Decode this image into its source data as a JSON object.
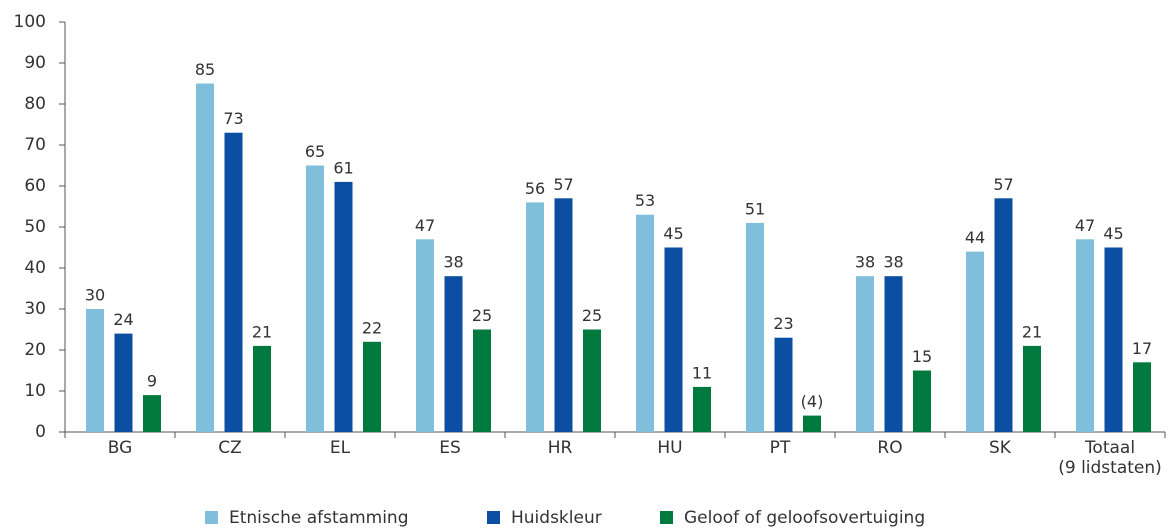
{
  "chart_data": {
    "type": "bar",
    "categories": [
      "BG",
      "CZ",
      "EL",
      "ES",
      "HR",
      "HU",
      "PT",
      "RO",
      "SK",
      "Totaal\n(9 lidstaten)"
    ],
    "series": [
      {
        "name": "Etnische afstamming",
        "color": "#7fbfdb",
        "values": [
          30,
          85,
          65,
          47,
          56,
          53,
          51,
          38,
          44,
          47
        ]
      },
      {
        "name": "Huidskleur",
        "color": "#0b4ea2",
        "values": [
          24,
          73,
          61,
          38,
          57,
          45,
          23,
          38,
          57,
          45
        ]
      },
      {
        "name": "Geloof of geloofsovertuiging",
        "color": "#00793f",
        "values": [
          9,
          21,
          22,
          25,
          25,
          11,
          4,
          15,
          21,
          17
        ],
        "value_labels": [
          "9",
          "21",
          "22",
          "25",
          "25",
          "11",
          "(4)",
          "15",
          "21",
          "17"
        ]
      }
    ],
    "ylim": [
      0,
      100
    ],
    "yticks": [
      0,
      10,
      20,
      30,
      40,
      50,
      60,
      70,
      80,
      90,
      100
    ],
    "grid": false,
    "legend": "bottom"
  }
}
